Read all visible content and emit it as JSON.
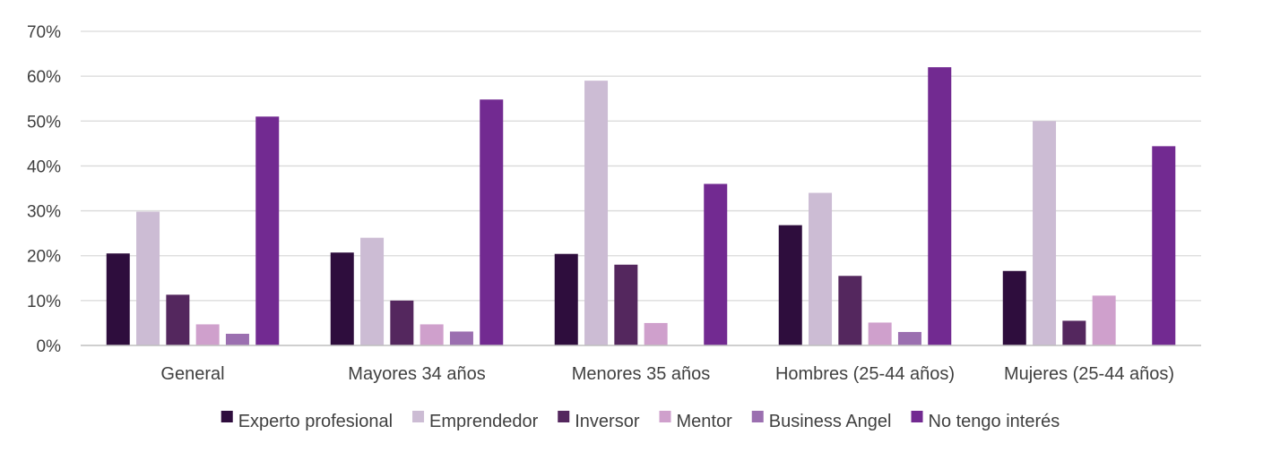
{
  "chart_data": {
    "type": "bar",
    "categories": [
      "General",
      "Mayores 34 años",
      "Menores 35 años",
      "Hombres (25-44 años)",
      "Mujeres (25-44 años)"
    ],
    "series": [
      {
        "name": "Experto profesional",
        "color": "#2e0d3d",
        "values": [
          20.5,
          20.7,
          20.4,
          26.8,
          16.6
        ]
      },
      {
        "name": "Emprendedor",
        "color": "#ccbcd4",
        "values": [
          29.8,
          24.0,
          59.0,
          34.0,
          50.0
        ]
      },
      {
        "name": "Inversor",
        "color": "#54275e",
        "values": [
          11.3,
          10.0,
          18.0,
          15.5,
          5.5
        ]
      },
      {
        "name": "Mentor",
        "color": "#cfa0cc",
        "values": [
          4.7,
          4.7,
          5.0,
          5.1,
          11.1
        ]
      },
      {
        "name": "Business Angel",
        "color": "#9b6fb0",
        "values": [
          2.6,
          3.1,
          0,
          3.0,
          0
        ]
      },
      {
        "name": "No tengo interés",
        "color": "#722a91",
        "values": [
          51.0,
          54.8,
          36.0,
          62.0,
          44.4
        ]
      }
    ],
    "y_ticks": [
      "0%",
      "10%",
      "20%",
      "30%",
      "40%",
      "50%",
      "60%",
      "70%"
    ],
    "ylim": [
      0,
      70
    ],
    "grid": true,
    "legend_position": "bottom",
    "title": "",
    "xlabel": "",
    "ylabel": ""
  }
}
